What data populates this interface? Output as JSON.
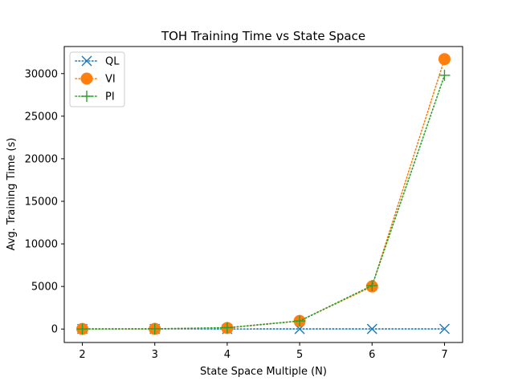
{
  "chart_data": {
    "type": "line",
    "title": "TOH Training Time vs State Space",
    "xlabel": "State Space Multiple (N)",
    "ylabel": "Avg. Training Time (s)",
    "x": [
      2,
      3,
      4,
      5,
      6,
      7
    ],
    "xlim": [
      1.75,
      7.25
    ],
    "ylim": [
      -1580,
      33180
    ],
    "xticks": [
      "2",
      "3",
      "4",
      "5",
      "6",
      "7"
    ],
    "yticks": [
      0,
      5000,
      10000,
      15000,
      20000,
      25000,
      30000
    ],
    "ytick_labels": [
      "0",
      "5000",
      "10000",
      "15000",
      "20000",
      "25000",
      "30000"
    ],
    "grid": false,
    "legend_position": "top-left",
    "series": [
      {
        "name": "QL",
        "color": "#1f77b4",
        "marker": "x",
        "linestyle": "dotted",
        "values": [
          5,
          8,
          10,
          12,
          15,
          18
        ]
      },
      {
        "name": "VI",
        "color": "#ff7f0e",
        "marker": "circle",
        "linestyle": "dotted",
        "values": [
          10,
          20,
          120,
          950,
          5000,
          31700
        ]
      },
      {
        "name": "PI",
        "color": "#2ca02c",
        "marker": "plus",
        "linestyle": "dotted",
        "values": [
          10,
          30,
          160,
          950,
          5100,
          29800
        ]
      }
    ]
  }
}
